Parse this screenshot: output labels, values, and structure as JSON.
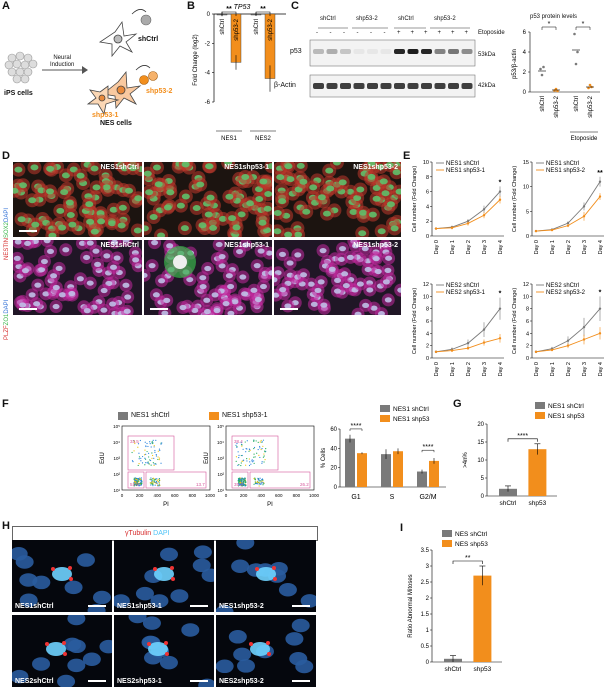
{
  "panel_labels": [
    "A",
    "B",
    "C",
    "D",
    "E",
    "F",
    "G",
    "H",
    "I"
  ],
  "colors": {
    "ctrl": "#7a7a7a",
    "kd": "#f28e1c",
    "green": "#39b54a",
    "red": "#d62c2c",
    "blue": "#2f6fd6",
    "magenta": "#c2299e",
    "cyan": "#4fc3f7",
    "gate": "#d6559b"
  },
  "panelA": {
    "ips": "iPS cells",
    "arrow": "Neural\nInduction",
    "nes": "NES cells",
    "shctrl": "shCtrl",
    "shp53_1": "shp53-1",
    "shp53_2": "shp53-2"
  },
  "panelB": {
    "title": "TP53",
    "ylabel": "Fold Change (log2)",
    "sig": "**",
    "groups": [
      "NES1",
      "NES2"
    ],
    "bars": [
      "shCtrl",
      "shp53-2",
      "shCtrl",
      "shp53-2"
    ]
  },
  "panelC": {
    "lanes_top": [
      "shCtrl",
      "shp53-2",
      "shCtrl",
      "shp53-2"
    ],
    "etoposide": "Etoposide",
    "eto_signs": [
      "-",
      "-",
      "-",
      "-",
      "-",
      "-",
      "+",
      "+",
      "+",
      "+",
      "+",
      "+"
    ],
    "bands": [
      "p53",
      "β-Actin"
    ],
    "kda": [
      "53kDa",
      "42kDa"
    ],
    "quant_title": "p53 protein levels",
    "quant_ylabel": "p53/β-actin",
    "quant_x": [
      "shCtrl",
      "shp53-2",
      "shCtrl",
      "shp53-2"
    ],
    "sig": "*"
  },
  "panelD": {
    "row1_label": "NESTIN SOX2 DAPI",
    "row2_label": "PLZF ZO1 DAPI",
    "tiles": [
      "NES1shCtrl",
      "NES1shp53-1",
      "NES1shp53-2",
      "NES1shCtrl",
      "NES1shp53-1",
      "NES1shp53-2"
    ]
  },
  "panelE": {
    "ylabel": "Cell number (Fold Change)",
    "days": [
      "Day 0",
      "Day 1",
      "Day 2",
      "Day 3",
      "Day 4"
    ],
    "plots": [
      {
        "ctrl": "NES1 shCtrl",
        "kd": "NES1 shp53-1",
        "sig": "*",
        "ymax": 10,
        "ticks": [
          0,
          2,
          4,
          6,
          8,
          10
        ],
        "ctrl_vals": [
          1,
          1.2,
          2,
          3.6,
          6
        ],
        "kd_vals": [
          1,
          1.1,
          1.7,
          2.8,
          4.9
        ],
        "err_c": [
          0.1,
          0.2,
          0.3,
          0.5,
          0.7
        ],
        "err_k": [
          0.1,
          0.2,
          0.3,
          0.4,
          0.5
        ]
      },
      {
        "ctrl": "NES1 shCtrl",
        "kd": "NES1 shp53-2",
        "sig": "**",
        "ymax": 15,
        "ticks": [
          0,
          5,
          10,
          15
        ],
        "ctrl_vals": [
          1,
          1.3,
          2.6,
          6,
          11
        ],
        "kd_vals": [
          1,
          1.2,
          2.1,
          4,
          8
        ],
        "err_c": [
          0.1,
          0.2,
          0.4,
          0.8,
          1
        ],
        "err_k": [
          0.1,
          0.2,
          0.3,
          0.9,
          0.7
        ]
      },
      {
        "ctrl": "NES2 shCtrl",
        "kd": "NES2 shp53-1",
        "sig": "*",
        "ymax": 12,
        "ticks": [
          0,
          2,
          4,
          6,
          8,
          10,
          12
        ],
        "ctrl_vals": [
          1,
          1.4,
          2.4,
          4.6,
          8
        ],
        "kd_vals": [
          1,
          1.2,
          1.6,
          2.5,
          3.2
        ],
        "err_c": [
          0.2,
          0.3,
          0.6,
          1.2,
          1.8
        ],
        "err_k": [
          0.1,
          0.2,
          0.3,
          0.5,
          0.7
        ]
      },
      {
        "ctrl": "NES2 shCtrl",
        "kd": "NES2 shp53-2",
        "sig": "*",
        "ymax": 12,
        "ticks": [
          0,
          2,
          4,
          6,
          8,
          10,
          12
        ],
        "ctrl_vals": [
          1,
          1.5,
          2.8,
          5,
          8
        ],
        "kd_vals": [
          1,
          1.3,
          2,
          3,
          4
        ],
        "err_c": [
          0.2,
          0.3,
          0.7,
          1.5,
          2
        ],
        "err_k": [
          0.1,
          0.2,
          0.4,
          0.8,
          1
        ]
      }
    ]
  },
  "panelF": {
    "ctrl_label": "NES1 shCtrl",
    "kd_label": "NES1 shp53-1",
    "flow_ylabel": "EdU",
    "flow_xlabel": "PI",
    "flow_xticks": [
      "0",
      "200",
      "400",
      "600",
      "800",
      "1000"
    ],
    "flow_yticks": [
      "10¹",
      "10²",
      "10³",
      "10⁴",
      "10⁵"
    ],
    "gates_ctrl": [
      "51.5",
      "33.5",
      "13.7"
    ],
    "gates_kd": [
      "35.3",
      "38.4",
      "26.2"
    ],
    "bar_legend": [
      "NES1 shCtrl",
      "NES1 shp53"
    ],
    "bar_ylabel": "% Cells",
    "bar_categories": [
      "G1",
      "S",
      "G2/M"
    ],
    "bar_ticks": [
      0,
      20,
      40,
      60
    ],
    "ctrl_vals": [
      50,
      34,
      16
    ],
    "kd_vals": [
      35,
      37,
      27
    ],
    "ctrl_err": [
      4,
      5,
      2
    ],
    "kd_err": [
      1,
      3,
      3
    ],
    "sig": "****"
  },
  "panelG": {
    "legend": [
      "NES1 shCtrl",
      "NES1 shp53"
    ],
    "ylabel": ">4n%",
    "categories": [
      "shCtrl",
      "shp53"
    ],
    "values": [
      2,
      13
    ],
    "errors": [
      0.8,
      1.5
    ],
    "ticks": [
      0,
      5,
      10,
      15,
      20
    ],
    "sig": "****"
  },
  "panelH": {
    "title_red": "γTubulin",
    "title_blue": "DAPI",
    "tiles": [
      "NES1shCtrl",
      "NES1shp53-1",
      "NES1shp53-2",
      "NES2shCtrl",
      "NES2shp53-1",
      "NES2shp53-2"
    ]
  },
  "panelI": {
    "legend": [
      "NES shCtrl",
      "NES shp53"
    ],
    "ylabel": "Ratio Abnormal Mitoses",
    "categories": [
      "shCtrl",
      "shp53"
    ],
    "values": [
      0.1,
      2.7
    ],
    "errors": [
      0.1,
      0.3
    ],
    "ticks": [
      0,
      0.5,
      1.0,
      1.5,
      2.0,
      2.5,
      3.0,
      3.5
    ],
    "sig": "**"
  }
}
